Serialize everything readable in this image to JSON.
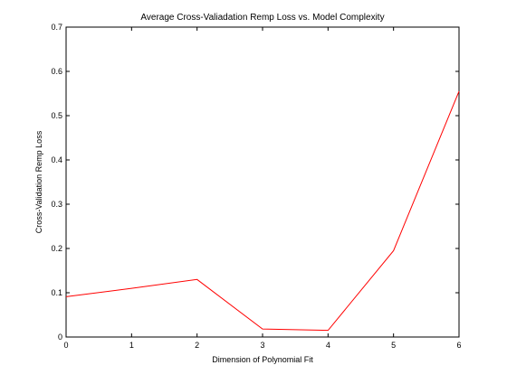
{
  "chart_data": {
    "type": "line",
    "title": "Average Cross-Valiadation Remp Loss vs. Model Complexity",
    "xlabel": "Dimension of Polynomial Fit",
    "ylabel": "Cross-Validation Remp Loss",
    "xlim": [
      0,
      6
    ],
    "ylim": [
      0,
      0.7
    ],
    "xticks": [
      0,
      1,
      2,
      3,
      4,
      5,
      6
    ],
    "xtick_labels": [
      "0",
      "1",
      "2",
      "3",
      "4",
      "5",
      "6"
    ],
    "yticks": [
      0,
      0.1,
      0.2,
      0.3,
      0.4,
      0.5,
      0.6,
      0.7
    ],
    "ytick_labels": [
      "0",
      "0.1",
      "0.2",
      "0.3",
      "0.4",
      "0.5",
      "0.6",
      "0.7"
    ],
    "grid": false,
    "legend": "none",
    "series": [
      {
        "color": "#ff0000",
        "x": [
          0,
          1,
          2,
          3,
          4,
          5,
          6
        ],
        "y": [
          0.091,
          0.11,
          0.13,
          0.018,
          0.015,
          0.195,
          0.555
        ]
      }
    ]
  }
}
